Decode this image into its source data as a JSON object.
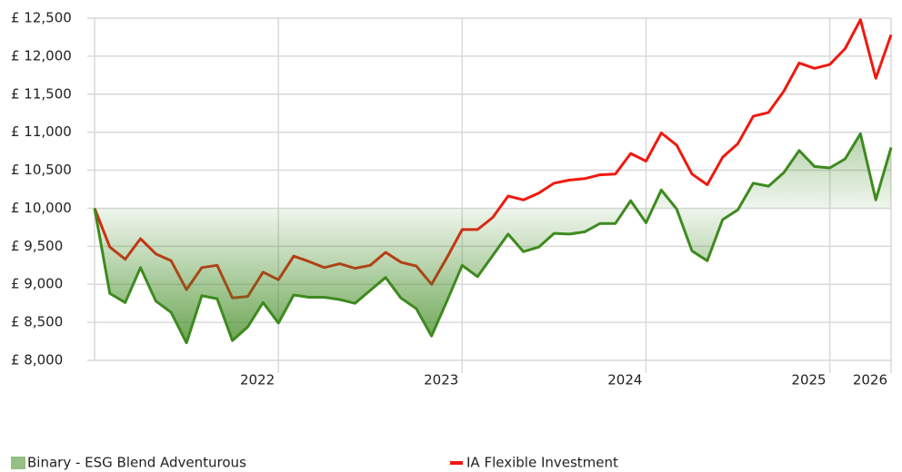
{
  "chart_data": {
    "type": "line",
    "categories": [
      null,
      null,
      null,
      null,
      null,
      null,
      null,
      null,
      null,
      null,
      null,
      null,
      "2022",
      null,
      null,
      null,
      null,
      null,
      null,
      null,
      null,
      null,
      null,
      null,
      "2023",
      null,
      null,
      null,
      null,
      null,
      null,
      null,
      null,
      null,
      null,
      null,
      "2024",
      null,
      null,
      null,
      null,
      null,
      null,
      null,
      null,
      null,
      null,
      null,
      "2025",
      null,
      null,
      null,
      "2026"
    ],
    "series": [
      {
        "name": "Binary - ESG Blend Adventurous",
        "color": "#3e8a1f",
        "fill": "area",
        "values": [
          10000,
          8880,
          8760,
          9220,
          8780,
          8630,
          8230,
          8850,
          8810,
          8260,
          8440,
          8760,
          8490,
          8860,
          8830,
          8830,
          8800,
          8750,
          8920,
          9090,
          8820,
          8680,
          8320,
          8780,
          9250,
          9100,
          9380,
          9660,
          9430,
          9490,
          9670,
          9660,
          9690,
          9800,
          9800,
          10100,
          9810,
          10240,
          9990,
          9440,
          9310,
          9850,
          9980,
          10330,
          10290,
          10470,
          10760,
          10550,
          10530,
          10650,
          10980,
          10110,
          10800
        ]
      },
      {
        "name": "IA Flexible Investment",
        "color": "#f0190f",
        "values": [
          10000,
          9490,
          9330,
          9600,
          9400,
          9310,
          8930,
          9220,
          9250,
          8820,
          8840,
          9160,
          9060,
          9370,
          9300,
          9220,
          9270,
          9210,
          9250,
          9420,
          9290,
          9240,
          9000,
          9350,
          9720,
          9720,
          9880,
          10160,
          10110,
          10200,
          10330,
          10370,
          10390,
          10440,
          10450,
          10720,
          10620,
          10990,
          10830,
          10450,
          10310,
          10670,
          10850,
          11210,
          11260,
          11540,
          11910,
          11840,
          11890,
          12100,
          12480,
          11710,
          12280
        ]
      }
    ],
    "baseline": 10000,
    "ylim": [
      8000,
      12500
    ],
    "yticks": [
      {
        "value": 8000,
        "label": "£ 8,000"
      },
      {
        "value": 8500,
        "label": "£ 8,500"
      },
      {
        "value": 9000,
        "label": "£ 9,000"
      },
      {
        "value": 9500,
        "label": "£ 9,500"
      },
      {
        "value": 10000,
        "label": "£ 10,000"
      },
      {
        "value": 10500,
        "label": "£ 10,500"
      },
      {
        "value": 11000,
        "label": "£ 11,000"
      },
      {
        "value": 11500,
        "label": "£ 11,500"
      },
      {
        "value": 12000,
        "label": "£ 12,000"
      },
      {
        "value": 12500,
        "label": "£ 12,500"
      }
    ],
    "grid": true,
    "legend": "bottom"
  }
}
